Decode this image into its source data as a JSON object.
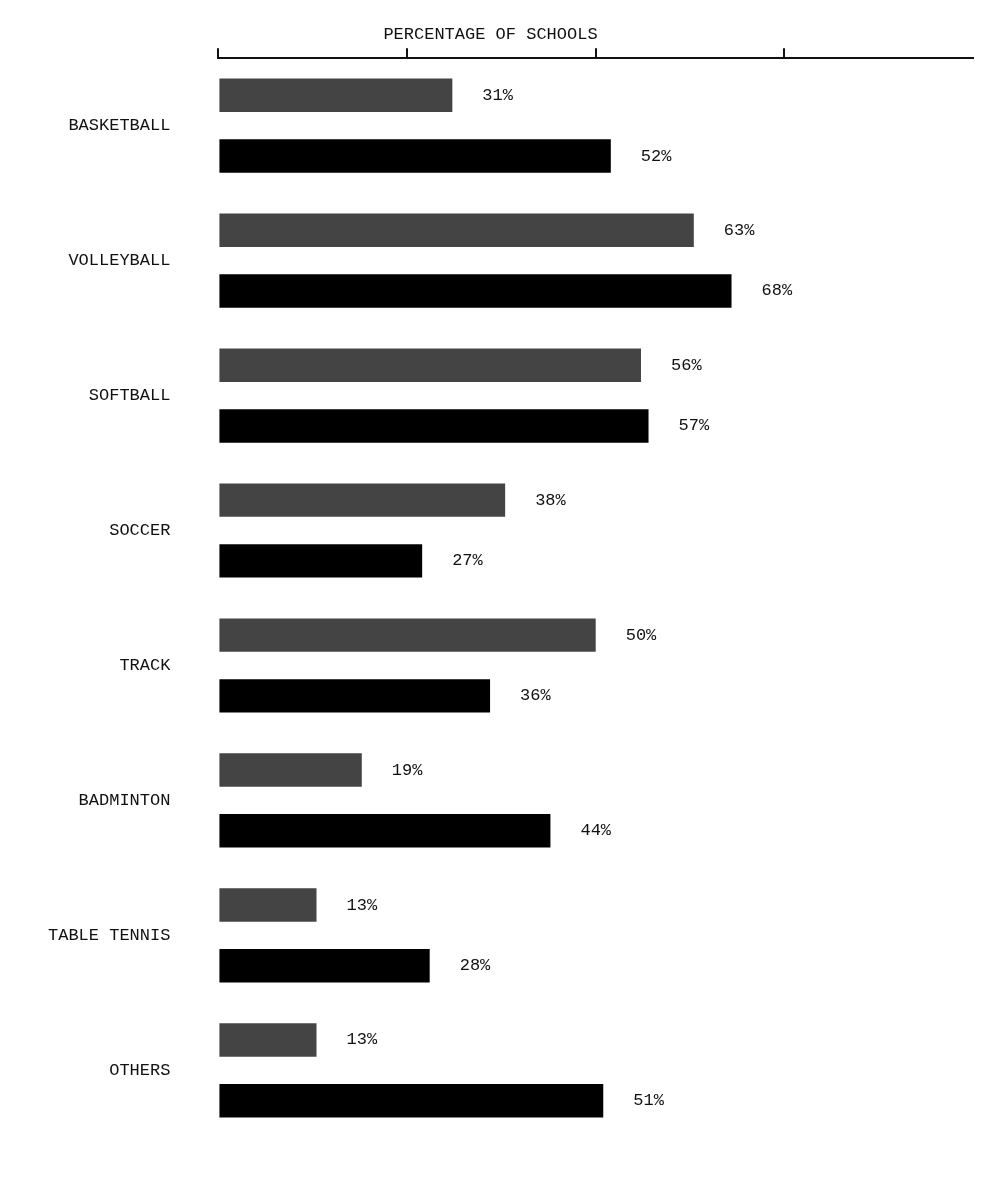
{
  "chart_data": {
    "type": "bar",
    "orientation": "horizontal",
    "title": "PERCENTAGE OF SCHOOLS",
    "categories": [
      "BASKETBALL",
      "VOLLEYBALL",
      "SOFTBALL",
      "SOCCER",
      "TRACK",
      "BADMINTON",
      "TABLE TENNIS",
      "OTHERS"
    ],
    "series": [
      {
        "color": "#444444",
        "values": [
          31,
          63,
          56,
          38,
          50,
          19,
          13,
          13
        ],
        "value_labels": [
          "31%",
          "63%",
          "56%",
          "38%",
          "50%",
          "19%",
          "13%",
          "13%"
        ]
      },
      {
        "color": "#000000",
        "values": [
          52,
          68,
          57,
          27,
          36,
          44,
          28,
          51
        ],
        "value_labels": [
          "52%",
          "68%",
          "57%",
          "27%",
          "36%",
          "44%",
          "28%",
          "51%"
        ]
      }
    ],
    "xlim": [
      0,
      100
    ],
    "xticks": [
      {
        "value": 0,
        "label": null
      },
      {
        "value": 25,
        "label": null
      },
      {
        "value": 50,
        "label": null
      },
      {
        "value": 75,
        "label": null
      }
    ],
    "tick_labels": "y",
    "grid": false,
    "legend": false
  }
}
